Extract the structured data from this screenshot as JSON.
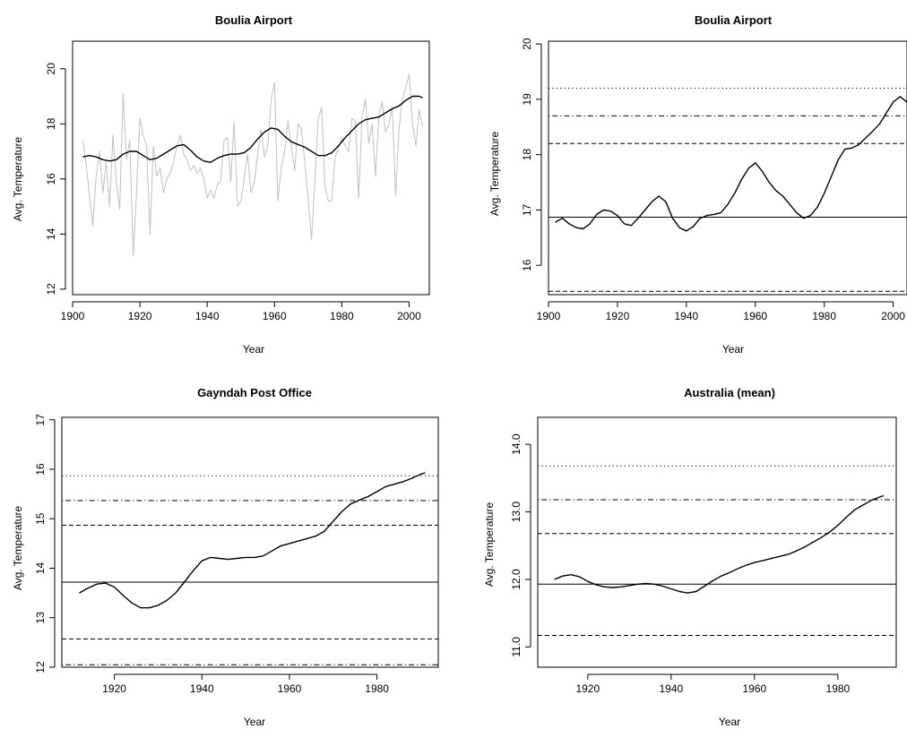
{
  "chart_data": [
    {
      "type": "line",
      "title": "Boulia Airport",
      "xlabel": "Year",
      "ylabel": "Avg. Temperature",
      "xlim": [
        1900,
        2006
      ],
      "ylim": [
        11.8,
        21.0
      ],
      "x_ticks": [
        "1900",
        "1920",
        "1940",
        "1960",
        "1980",
        "2000"
      ],
      "y_ticks": [
        "12",
        "14",
        "16",
        "18",
        "20"
      ],
      "series": [
        {
          "role": "raw",
          "color": "#c0c0c0",
          "x": [
            1903,
            1904,
            1905,
            1906,
            1907,
            1908,
            1909,
            1910,
            1911,
            1912,
            1913,
            1914,
            1915,
            1916,
            1917,
            1918,
            1919,
            1920,
            1921,
            1922,
            1923,
            1924,
            1925,
            1926,
            1927,
            1928,
            1929,
            1930,
            1931,
            1932,
            1933,
            1934,
            1935,
            1936,
            1937,
            1938,
            1939,
            1940,
            1941,
            1942,
            1943,
            1944,
            1945,
            1946,
            1947,
            1948,
            1949,
            1950,
            1951,
            1952,
            1953,
            1954,
            1955,
            1956,
            1957,
            1958,
            1959,
            1960,
            1961,
            1962,
            1963,
            1964,
            1965,
            1966,
            1967,
            1968,
            1969,
            1970,
            1971,
            1972,
            1973,
            1974,
            1975,
            1976,
            1977,
            1978,
            1979,
            1980,
            1981,
            1982,
            1983,
            1984,
            1985,
            1986,
            1987,
            1988,
            1989,
            1990,
            1991,
            1992,
            1993,
            1994,
            1995,
            1996,
            1997,
            1998,
            1999,
            2000,
            2001,
            2002,
            2003,
            2004
          ],
          "values": [
            17.4,
            16.6,
            15.4,
            14.3,
            16.1,
            17.0,
            15.5,
            16.6,
            15.0,
            17.6,
            15.9,
            14.9,
            19.1,
            16.7,
            17.4,
            13.2,
            15.5,
            18.2,
            17.6,
            17.2,
            14.0,
            17.2,
            16.1,
            16.4,
            15.5,
            16.0,
            16.2,
            16.6,
            17.2,
            17.6,
            16.9,
            16.7,
            16.3,
            16.5,
            16.2,
            16.4,
            16.0,
            15.3,
            15.6,
            15.3,
            15.8,
            15.9,
            17.4,
            17.5,
            15.9,
            18.1,
            15.0,
            15.2,
            16.0,
            16.9,
            15.5,
            15.9,
            16.9,
            17.8,
            16.8,
            17.2,
            18.9,
            19.5,
            15.2,
            16.4,
            17.0,
            18.1,
            17.2,
            16.3,
            18.0,
            17.8,
            16.6,
            15.3,
            13.8,
            16.0,
            18.2,
            18.6,
            15.7,
            15.2,
            15.2,
            16.8,
            17.1,
            17.5,
            17.2,
            17.0,
            18.2,
            18.1,
            15.3,
            18.2,
            18.9,
            17.3,
            18.0,
            16.1,
            18.3,
            18.8,
            17.7,
            18.0,
            18.6,
            15.4,
            17.8,
            18.9,
            19.3,
            19.8,
            18.0,
            17.2,
            18.5,
            17.9
          ]
        },
        {
          "role": "smooth",
          "color": "#000000",
          "x": [
            1903,
            1905,
            1907,
            1909,
            1911,
            1913,
            1915,
            1917,
            1919,
            1921,
            1923,
            1925,
            1927,
            1929,
            1931,
            1933,
            1935,
            1937,
            1939,
            1941,
            1943,
            1945,
            1947,
            1949,
            1951,
            1953,
            1955,
            1957,
            1959,
            1961,
            1963,
            1965,
            1967,
            1969,
            1971,
            1973,
            1975,
            1977,
            1979,
            1981,
            1983,
            1985,
            1987,
            1989,
            1991,
            1993,
            1995,
            1997,
            1999,
            2001,
            2003,
            2004
          ],
          "values": [
            16.8,
            16.85,
            16.8,
            16.7,
            16.65,
            16.7,
            16.9,
            17.0,
            17.0,
            16.85,
            16.7,
            16.75,
            16.9,
            17.05,
            17.2,
            17.25,
            17.05,
            16.8,
            16.65,
            16.6,
            16.75,
            16.85,
            16.9,
            16.9,
            16.95,
            17.15,
            17.45,
            17.7,
            17.85,
            17.8,
            17.55,
            17.35,
            17.25,
            17.15,
            17.0,
            16.85,
            16.85,
            16.95,
            17.2,
            17.5,
            17.75,
            18.0,
            18.15,
            18.2,
            18.25,
            18.4,
            18.55,
            18.65,
            18.85,
            19.0,
            19.0,
            18.95
          ]
        }
      ]
    },
    {
      "type": "line",
      "title": "Boulia Airport",
      "xlabel": "Year",
      "ylabel": "Avg. Temperature",
      "xlim": [
        1900,
        2004
      ],
      "ylim": [
        15.47,
        20.05
      ],
      "x_ticks": [
        "1900",
        "1920",
        "1940",
        "1960",
        "1980",
        "2000"
      ],
      "y_ticks": [
        "16",
        "17",
        "18",
        "19",
        "20"
      ],
      "reference_lines": [
        {
          "y": 16.87,
          "style": "solid"
        },
        {
          "y": 18.2,
          "style": "dashed"
        },
        {
          "y": 15.53,
          "style": "dashed"
        },
        {
          "y": 18.7,
          "style": "dotdash"
        },
        {
          "y": 19.2,
          "style": "dotted"
        }
      ],
      "series": [
        {
          "role": "smooth",
          "color": "#000000",
          "x": [
            1902,
            1904,
            1906,
            1908,
            1910,
            1912,
            1914,
            1916,
            1918,
            1920,
            1922,
            1924,
            1926,
            1928,
            1930,
            1932,
            1934,
            1936,
            1938,
            1940,
            1942,
            1944,
            1946,
            1948,
            1950,
            1952,
            1954,
            1956,
            1958,
            1960,
            1962,
            1964,
            1966,
            1968,
            1970,
            1972,
            1974,
            1976,
            1978,
            1980,
            1982,
            1984,
            1986,
            1988,
            1990,
            1992,
            1994,
            1996,
            1998,
            2000,
            2002,
            2004
          ],
          "values": [
            16.78,
            16.85,
            16.75,
            16.68,
            16.66,
            16.75,
            16.92,
            17.0,
            16.98,
            16.9,
            16.75,
            16.72,
            16.85,
            17.0,
            17.15,
            17.25,
            17.15,
            16.85,
            16.68,
            16.62,
            16.7,
            16.85,
            16.9,
            16.92,
            16.95,
            17.1,
            17.3,
            17.55,
            17.75,
            17.85,
            17.7,
            17.5,
            17.35,
            17.25,
            17.1,
            16.95,
            16.85,
            16.9,
            17.05,
            17.3,
            17.6,
            17.9,
            18.1,
            18.12,
            18.18,
            18.3,
            18.42,
            18.55,
            18.75,
            18.95,
            19.05,
            18.95
          ]
        }
      ]
    },
    {
      "type": "line",
      "title": "Gayndah Post Office",
      "xlabel": "Year",
      "ylabel": "Avg. Temperature",
      "xlim": [
        1908,
        1994
      ],
      "ylim": [
        12.0,
        17.05
      ],
      "x_ticks": [
        "1920",
        "1940",
        "1960",
        "1980"
      ],
      "y_ticks": [
        "12",
        "13",
        "14",
        "15",
        "16",
        "17"
      ],
      "reference_lines": [
        {
          "y": 13.72,
          "style": "solid"
        },
        {
          "y": 14.87,
          "style": "dashed"
        },
        {
          "y": 12.57,
          "style": "dashed"
        },
        {
          "y": 15.37,
          "style": "dotdash"
        },
        {
          "y": 12.05,
          "style": "dotdash"
        },
        {
          "y": 15.87,
          "style": "dotted"
        }
      ],
      "series": [
        {
          "role": "smooth",
          "color": "#000000",
          "x": [
            1912,
            1914,
            1916,
            1918,
            1920,
            1922,
            1924,
            1926,
            1928,
            1930,
            1932,
            1934,
            1936,
            1938,
            1940,
            1942,
            1944,
            1946,
            1948,
            1950,
            1952,
            1954,
            1956,
            1958,
            1960,
            1962,
            1964,
            1966,
            1968,
            1970,
            1972,
            1974,
            1976,
            1978,
            1980,
            1982,
            1984,
            1986,
            1988,
            1990,
            1991
          ],
          "values": [
            13.5,
            13.6,
            13.68,
            13.7,
            13.62,
            13.45,
            13.3,
            13.2,
            13.2,
            13.25,
            13.35,
            13.5,
            13.72,
            13.95,
            14.15,
            14.22,
            14.2,
            14.18,
            14.2,
            14.22,
            14.22,
            14.25,
            14.35,
            14.45,
            14.5,
            14.55,
            14.6,
            14.65,
            14.75,
            14.95,
            15.15,
            15.3,
            15.38,
            15.45,
            15.55,
            15.65,
            15.7,
            15.75,
            15.82,
            15.9,
            15.93
          ]
        }
      ]
    },
    {
      "type": "line",
      "title": "Australia (mean)",
      "xlabel": "Year",
      "ylabel": "Avg. Temperature",
      "xlim": [
        1908,
        1994
      ],
      "ylim": [
        10.7,
        14.4
      ],
      "x_ticks": [
        "1920",
        "1940",
        "1960",
        "1980"
      ],
      "y_ticks": [
        "11.0",
        "12.0",
        "13.0",
        "14.0"
      ],
      "reference_lines": [
        {
          "y": 11.93,
          "style": "solid"
        },
        {
          "y": 12.68,
          "style": "dashed"
        },
        {
          "y": 11.17,
          "style": "dashed"
        },
        {
          "y": 13.18,
          "style": "dotdash"
        },
        {
          "y": 13.68,
          "style": "dotted"
        }
      ],
      "series": [
        {
          "role": "smooth",
          "color": "#000000",
          "x": [
            1912,
            1914,
            1916,
            1918,
            1920,
            1922,
            1924,
            1926,
            1928,
            1930,
            1932,
            1934,
            1936,
            1938,
            1940,
            1942,
            1944,
            1946,
            1948,
            1950,
            1952,
            1954,
            1956,
            1958,
            1960,
            1962,
            1964,
            1966,
            1968,
            1970,
            1972,
            1974,
            1976,
            1978,
            1980,
            1982,
            1984,
            1986,
            1988,
            1990,
            1991
          ],
          "values": [
            12.0,
            12.05,
            12.07,
            12.04,
            11.97,
            11.92,
            11.89,
            11.88,
            11.89,
            11.91,
            11.93,
            11.94,
            11.93,
            11.9,
            11.86,
            11.82,
            11.8,
            11.82,
            11.9,
            11.98,
            12.05,
            12.1,
            12.16,
            12.21,
            12.25,
            12.28,
            12.31,
            12.34,
            12.37,
            12.42,
            12.48,
            12.55,
            12.62,
            12.7,
            12.8,
            12.92,
            13.03,
            13.1,
            13.17,
            13.22,
            13.24
          ]
        }
      ]
    }
  ]
}
